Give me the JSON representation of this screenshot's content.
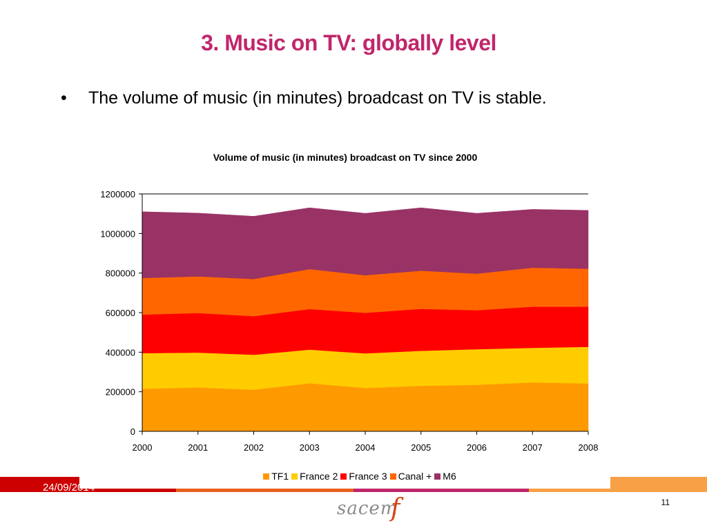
{
  "slide": {
    "title": "3. Music on TV: globally level",
    "title_color": "#c0266b",
    "bullet_symbol": "•",
    "bullet_text": "The volume of music (in minutes) broadcast on TV is stable."
  },
  "chart_data": {
    "type": "area",
    "stacked": true,
    "title": "Volume of music (in minutes) broadcast on TV since 2000",
    "x": [
      "2000",
      "2001",
      "2002",
      "2003",
      "2004",
      "2005",
      "2006",
      "2007",
      "2008"
    ],
    "ylim": [
      0,
      1200000
    ],
    "yticks": [
      0,
      200000,
      400000,
      600000,
      800000,
      1000000,
      1200000
    ],
    "grid": false,
    "legend_position": "bottom",
    "series": [
      {
        "name": "TF1",
        "color": "#ff9900",
        "values": [
          215000,
          222000,
          210000,
          243000,
          219000,
          230000,
          235000,
          247000,
          242000
        ]
      },
      {
        "name": "France 2",
        "color": "#ffcc00",
        "values": [
          180000,
          176000,
          177000,
          170000,
          175000,
          177000,
          180000,
          175000,
          185000
        ]
      },
      {
        "name": "France 3",
        "color": "#ff0000",
        "values": [
          195000,
          200000,
          195000,
          205000,
          205000,
          212000,
          197000,
          208000,
          203000
        ]
      },
      {
        "name": "Canal +",
        "color": "#ff6600",
        "values": [
          185000,
          185000,
          188000,
          202000,
          190000,
          193000,
          185000,
          197000,
          192000
        ]
      },
      {
        "name": "M6",
        "color": "#993366",
        "values": [
          335000,
          320000,
          317000,
          310000,
          313000,
          318000,
          305000,
          295000,
          295000
        ]
      }
    ]
  },
  "footer": {
    "date": "24/09/2014",
    "page_number": "11",
    "logo_text": "sacem",
    "logo_mark": "f",
    "band_colors": [
      "#cc0000",
      "#e8601c",
      "#c0266b",
      "#f7a046"
    ]
  }
}
